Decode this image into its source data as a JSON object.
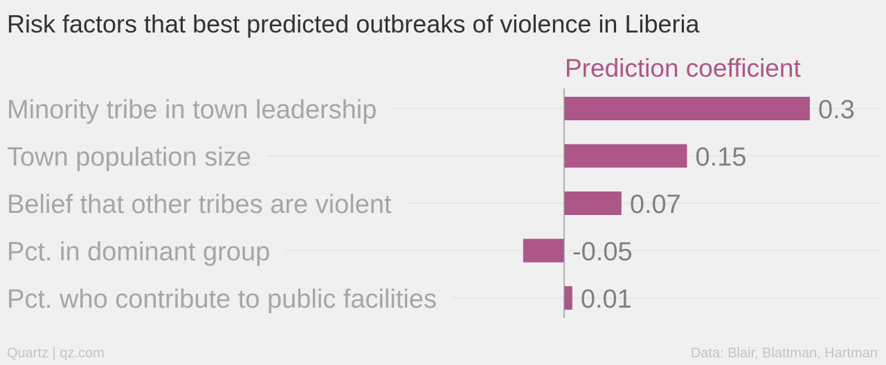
{
  "title": "Risk factors that best predicted outbreaks of violence in Liberia",
  "footer": {
    "source_left": "Quartz | qz.com",
    "source_right": "Data: Blair, Blattman, Hartman"
  },
  "colors": {
    "bar": "#ac5787",
    "label": "#a6a6a6",
    "value": "#808080",
    "grid": "#e3e3e3",
    "axis": "#9a9a9a"
  },
  "chart_data": {
    "type": "bar",
    "orientation": "horizontal",
    "series": [
      {
        "name": "Prediction coefficient",
        "values": [
          0.3,
          0.15,
          0.07,
          -0.05,
          0.01
        ]
      }
    ],
    "categories": [
      "Minority tribe in town leadership",
      "Town population size",
      "Belief that other tribes are violent",
      "Pct. in dominant group",
      "Pct. who contribute to public facilities"
    ],
    "value_labels": [
      "0.3",
      "0.15",
      "0.07",
      "-0.05",
      "0.01"
    ],
    "xlim": [
      -0.05,
      0.3
    ],
    "zero_line": true,
    "gridlines": true
  }
}
